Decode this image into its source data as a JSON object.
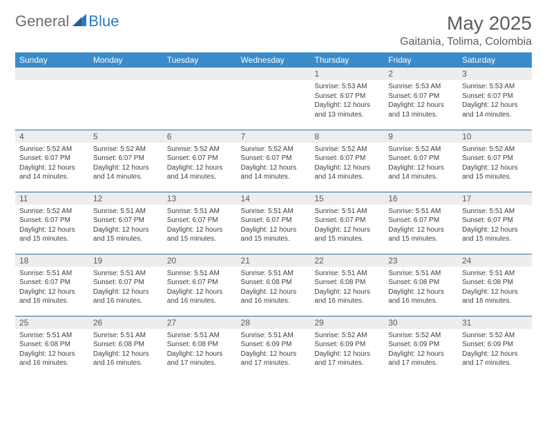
{
  "brand": {
    "part1": "General",
    "part2": "Blue"
  },
  "title": "May 2025",
  "location": "Gaitania, Tolima, Colombia",
  "colors": {
    "header_bg": "#3b8bc9",
    "header_text": "#ffffff",
    "daynum_bg": "#eceded",
    "border": "#2b6ca3",
    "brand_gray": "#6d6e71",
    "brand_blue": "#2b7bbf"
  },
  "weekdays": [
    "Sunday",
    "Monday",
    "Tuesday",
    "Wednesday",
    "Thursday",
    "Friday",
    "Saturday"
  ],
  "weeks": [
    [
      null,
      null,
      null,
      null,
      {
        "n": "1",
        "sr": "5:53 AM",
        "ss": "6:07 PM",
        "dl": "12 hours and 13 minutes."
      },
      {
        "n": "2",
        "sr": "5:53 AM",
        "ss": "6:07 PM",
        "dl": "12 hours and 13 minutes."
      },
      {
        "n": "3",
        "sr": "5:53 AM",
        "ss": "6:07 PM",
        "dl": "12 hours and 14 minutes."
      }
    ],
    [
      {
        "n": "4",
        "sr": "5:52 AM",
        "ss": "6:07 PM",
        "dl": "12 hours and 14 minutes."
      },
      {
        "n": "5",
        "sr": "5:52 AM",
        "ss": "6:07 PM",
        "dl": "12 hours and 14 minutes."
      },
      {
        "n": "6",
        "sr": "5:52 AM",
        "ss": "6:07 PM",
        "dl": "12 hours and 14 minutes."
      },
      {
        "n": "7",
        "sr": "5:52 AM",
        "ss": "6:07 PM",
        "dl": "12 hours and 14 minutes."
      },
      {
        "n": "8",
        "sr": "5:52 AM",
        "ss": "6:07 PM",
        "dl": "12 hours and 14 minutes."
      },
      {
        "n": "9",
        "sr": "5:52 AM",
        "ss": "6:07 PM",
        "dl": "12 hours and 14 minutes."
      },
      {
        "n": "10",
        "sr": "5:52 AM",
        "ss": "6:07 PM",
        "dl": "12 hours and 15 minutes."
      }
    ],
    [
      {
        "n": "11",
        "sr": "5:52 AM",
        "ss": "6:07 PM",
        "dl": "12 hours and 15 minutes."
      },
      {
        "n": "12",
        "sr": "5:51 AM",
        "ss": "6:07 PM",
        "dl": "12 hours and 15 minutes."
      },
      {
        "n": "13",
        "sr": "5:51 AM",
        "ss": "6:07 PM",
        "dl": "12 hours and 15 minutes."
      },
      {
        "n": "14",
        "sr": "5:51 AM",
        "ss": "6:07 PM",
        "dl": "12 hours and 15 minutes."
      },
      {
        "n": "15",
        "sr": "5:51 AM",
        "ss": "6:07 PM",
        "dl": "12 hours and 15 minutes."
      },
      {
        "n": "16",
        "sr": "5:51 AM",
        "ss": "6:07 PM",
        "dl": "12 hours and 15 minutes."
      },
      {
        "n": "17",
        "sr": "5:51 AM",
        "ss": "6:07 PM",
        "dl": "12 hours and 15 minutes."
      }
    ],
    [
      {
        "n": "18",
        "sr": "5:51 AM",
        "ss": "6:07 PM",
        "dl": "12 hours and 16 minutes."
      },
      {
        "n": "19",
        "sr": "5:51 AM",
        "ss": "6:07 PM",
        "dl": "12 hours and 16 minutes."
      },
      {
        "n": "20",
        "sr": "5:51 AM",
        "ss": "6:07 PM",
        "dl": "12 hours and 16 minutes."
      },
      {
        "n": "21",
        "sr": "5:51 AM",
        "ss": "6:08 PM",
        "dl": "12 hours and 16 minutes."
      },
      {
        "n": "22",
        "sr": "5:51 AM",
        "ss": "6:08 PM",
        "dl": "12 hours and 16 minutes."
      },
      {
        "n": "23",
        "sr": "5:51 AM",
        "ss": "6:08 PM",
        "dl": "12 hours and 16 minutes."
      },
      {
        "n": "24",
        "sr": "5:51 AM",
        "ss": "6:08 PM",
        "dl": "12 hours and 16 minutes."
      }
    ],
    [
      {
        "n": "25",
        "sr": "5:51 AM",
        "ss": "6:08 PM",
        "dl": "12 hours and 16 minutes."
      },
      {
        "n": "26",
        "sr": "5:51 AM",
        "ss": "6:08 PM",
        "dl": "12 hours and 16 minutes."
      },
      {
        "n": "27",
        "sr": "5:51 AM",
        "ss": "6:08 PM",
        "dl": "12 hours and 17 minutes."
      },
      {
        "n": "28",
        "sr": "5:51 AM",
        "ss": "6:09 PM",
        "dl": "12 hours and 17 minutes."
      },
      {
        "n": "29",
        "sr": "5:52 AM",
        "ss": "6:09 PM",
        "dl": "12 hours and 17 minutes."
      },
      {
        "n": "30",
        "sr": "5:52 AM",
        "ss": "6:09 PM",
        "dl": "12 hours and 17 minutes."
      },
      {
        "n": "31",
        "sr": "5:52 AM",
        "ss": "6:09 PM",
        "dl": "12 hours and 17 minutes."
      }
    ]
  ],
  "labels": {
    "sunrise": "Sunrise:",
    "sunset": "Sunset:",
    "daylight": "Daylight:"
  }
}
